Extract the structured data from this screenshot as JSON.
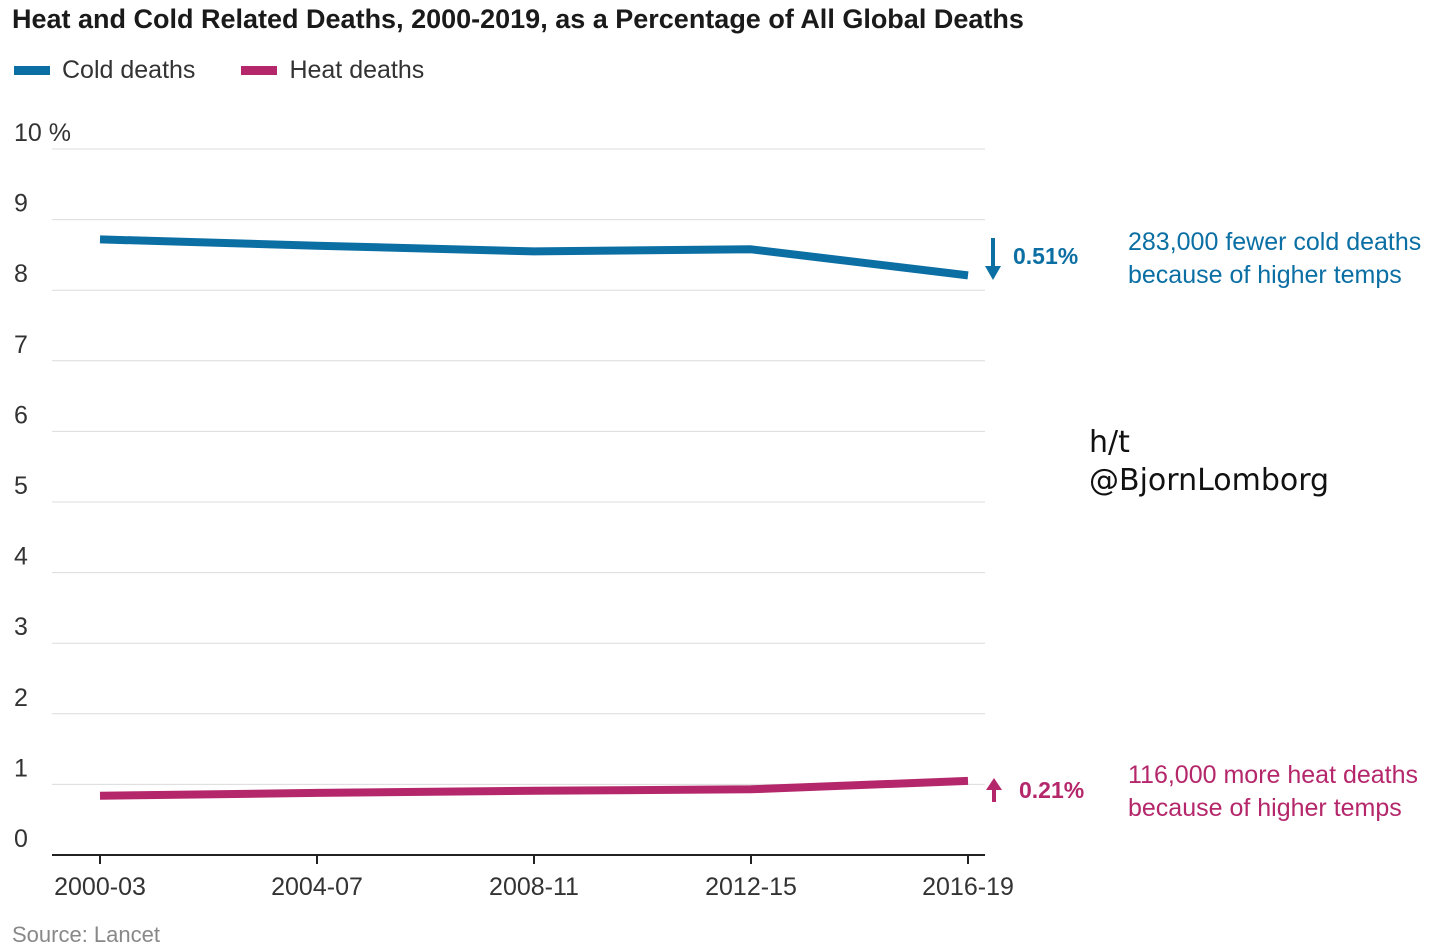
{
  "chart_data": {
    "type": "line",
    "title": "Heat and Cold Related Deaths, 2000-2019, as a Percentage of All Global Deaths",
    "categories": [
      "2000-03",
      "2004-07",
      "2008-11",
      "2012-15",
      "2016-19"
    ],
    "ylim": [
      0,
      10
    ],
    "yticks": [
      "10 %",
      "9",
      "8",
      "7",
      "6",
      "5",
      "4",
      "3",
      "2",
      "1",
      "0"
    ],
    "grid": true,
    "legend_position": "top-left",
    "series": [
      {
        "name": "Cold deaths",
        "color": "#0b6fa4",
        "values": [
          8.72,
          8.63,
          8.55,
          8.58,
          8.21
        ]
      },
      {
        "name": "Heat deaths",
        "color": "#b5276b",
        "values": [
          0.84,
          0.88,
          0.91,
          0.93,
          1.05
        ]
      }
    ],
    "annotations": {
      "cold_change": "0.51%",
      "cold_note_line1": "283,000 fewer cold deaths",
      "cold_note_line2": "because of higher temps",
      "heat_change": "0.21%",
      "heat_note_line1": "116,000 more heat deaths",
      "heat_note_line2": "because of higher temps"
    },
    "source": "Source: Lancet"
  },
  "credit": {
    "line1": "h/t",
    "line2": "@BjornLomborg"
  }
}
